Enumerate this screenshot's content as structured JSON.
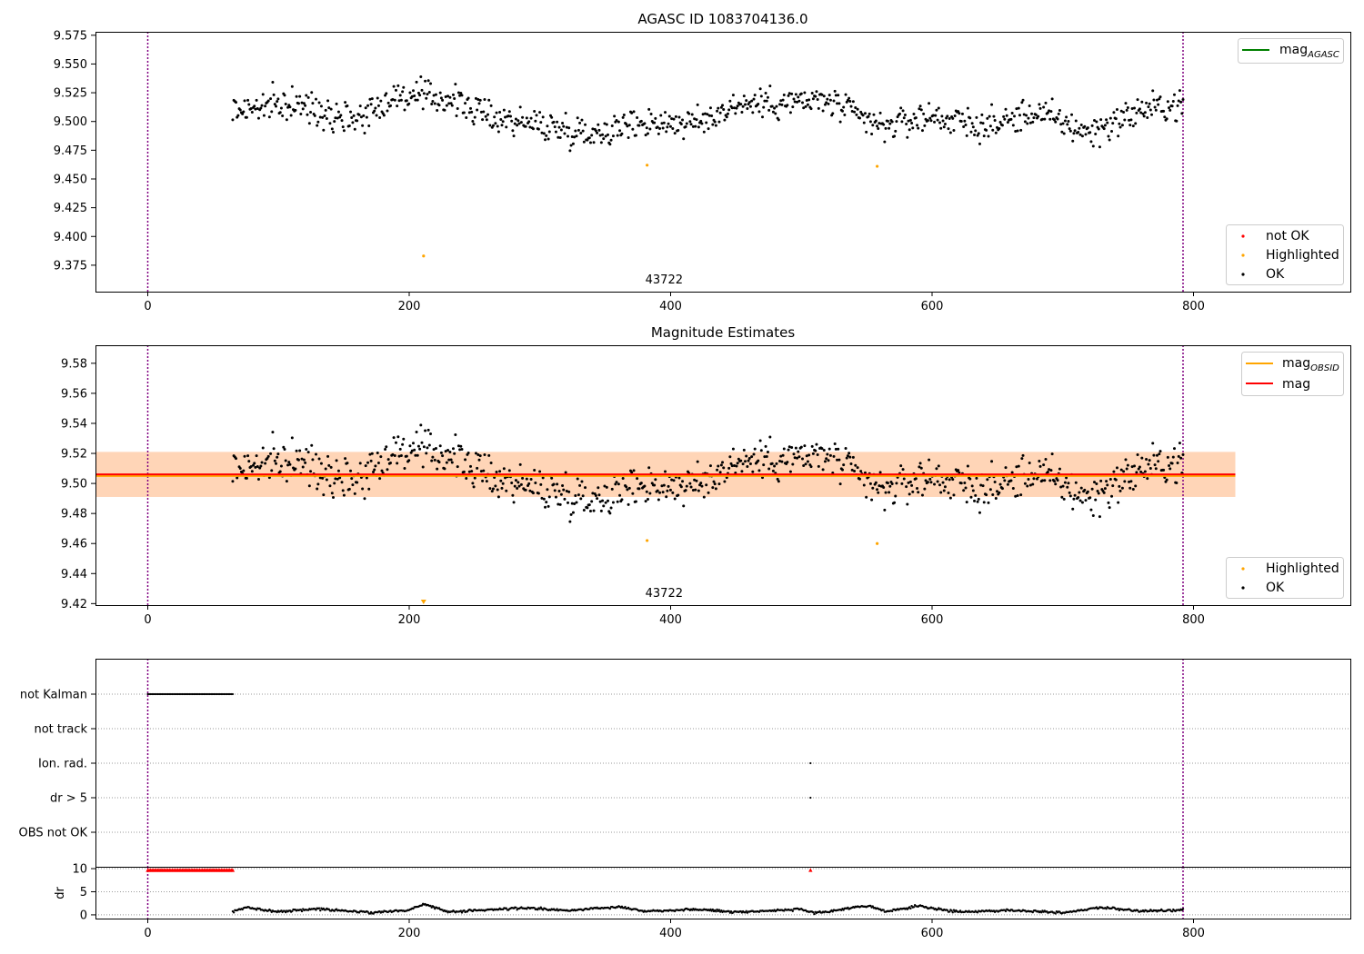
{
  "chart_data": [
    {
      "type": "scatter",
      "title": "AGASC ID 1083704136.0",
      "xlabel": "",
      "ylabel": "",
      "xlim": [
        -40,
        920
      ],
      "ylim": [
        9.352,
        9.578
      ],
      "xticks": [
        "0",
        "200",
        "400",
        "600",
        "800"
      ],
      "yticks": [
        "9.375",
        "9.400",
        "9.425",
        "9.450",
        "9.475",
        "9.500",
        "9.525",
        "9.550",
        "9.575"
      ],
      "obsid_label": "43722",
      "obsid_label_x": 395,
      "obs_boundaries": [
        0,
        792
      ],
      "legend_lines": [
        {
          "name": "mag$_{AGASC}$",
          "main": "mag",
          "sub": "AGASC",
          "color": "#008000"
        }
      ],
      "legend_points": [
        {
          "name": "not OK",
          "color": "#ff0000"
        },
        {
          "name": "Highlighted",
          "color": "#ffa500"
        },
        {
          "name": "OK",
          "color": "#000000"
        }
      ],
      "highlighted": [
        {
          "x": 211,
          "y": 9.383
        },
        {
          "x": 382,
          "y": 9.462
        },
        {
          "x": 558,
          "y": 9.461
        }
      ],
      "ok_series": {
        "x_start": 65,
        "x_end": 792,
        "count": 880,
        "color": "#000000",
        "trend": [
          [
            65,
            9.51
          ],
          [
            110,
            9.515
          ],
          [
            160,
            9.503
          ],
          [
            190,
            9.522
          ],
          [
            230,
            9.52
          ],
          [
            260,
            9.505
          ],
          [
            300,
            9.497
          ],
          [
            340,
            9.49
          ],
          [
            380,
            9.5
          ],
          [
            420,
            9.498
          ],
          [
            450,
            9.515
          ],
          [
            520,
            9.518
          ],
          [
            560,
            9.495
          ],
          [
            600,
            9.505
          ],
          [
            640,
            9.495
          ],
          [
            680,
            9.508
          ],
          [
            720,
            9.49
          ],
          [
            760,
            9.51
          ],
          [
            792,
            9.515
          ]
        ],
        "scatter": 0.012
      }
    },
    {
      "type": "scatter",
      "title": "Magnitude Estimates",
      "xlabel": "",
      "ylabel": "",
      "xlim": [
        -40,
        920
      ],
      "ylim": [
        9.419,
        9.592
      ],
      "xticks": [
        "0",
        "200",
        "400",
        "600",
        "800"
      ],
      "yticks": [
        "9.42",
        "9.44",
        "9.46",
        "9.48",
        "9.50",
        "9.52",
        "9.54",
        "9.56",
        "9.58"
      ],
      "obsid_label": "43722",
      "obsid_label_x": 395,
      "obs_boundaries": [
        0,
        792
      ],
      "mag_line": {
        "value": 9.506,
        "band": [
          9.491,
          9.521
        ],
        "xrange": [
          -40,
          832
        ],
        "color": "#ff0000"
      },
      "mag_obsid_line": {
        "value": 9.505,
        "band": [
          9.491,
          9.521
        ],
        "xrange": [
          -40,
          832
        ],
        "color": "#ffa500"
      },
      "legend_lines": [
        {
          "name": "mag$_{OBSID}$",
          "main": "mag",
          "sub": "OBSID",
          "color": "#ffa500"
        },
        {
          "name": "mag",
          "main": "mag",
          "sub": "",
          "color": "#ff0000"
        }
      ],
      "legend_points": [
        {
          "name": "Highlighted",
          "color": "#ffa500"
        },
        {
          "name": "OK",
          "color": "#000000"
        }
      ],
      "highlighted": [
        {
          "x": 382,
          "y": 9.462
        },
        {
          "x": 558,
          "y": 9.46
        }
      ],
      "clipped_marker": {
        "x": 211,
        "color": "#ffa500"
      }
    },
    {
      "type": "scatter",
      "title": "",
      "categories": [
        "not Kalman",
        "not track",
        "Ion. rad.",
        "dr > 5",
        "OBS not OK"
      ],
      "flags": {
        "not_kalman": {
          "x_range": [
            0,
            65
          ],
          "count": 60
        },
        "ion_rad": [
          507
        ],
        "dr_gt_5": [
          507
        ]
      },
      "obs_boundaries": [
        0,
        792
      ],
      "xlim": [
        -40,
        920
      ]
    },
    {
      "type": "scatter",
      "title": "",
      "ylabel": "dr",
      "yticks": [
        "0",
        "5",
        "10"
      ],
      "ylim": [
        -0.8,
        10.4
      ],
      "xticks": [
        "0",
        "200",
        "400",
        "600",
        "800"
      ],
      "xlim": [
        -40,
        920
      ],
      "clipped_red": {
        "x_range": [
          0,
          65
        ],
        "count": 60,
        "y": 9.7,
        "extra_x": 507,
        "color": "#ff0000"
      },
      "dr_trend": [
        [
          65,
          0.6
        ],
        [
          75,
          1.6
        ],
        [
          100,
          0.7
        ],
        [
          130,
          1.3
        ],
        [
          170,
          0.5
        ],
        [
          200,
          1.0
        ],
        [
          211,
          2.4
        ],
        [
          230,
          0.6
        ],
        [
          260,
          1.1
        ],
        [
          290,
          1.5
        ],
        [
          320,
          0.9
        ],
        [
          360,
          1.8
        ],
        [
          380,
          0.8
        ],
        [
          420,
          1.2
        ],
        [
          450,
          0.6
        ],
        [
          500,
          1.2
        ],
        [
          510,
          0.3
        ],
        [
          550,
          2.0
        ],
        [
          565,
          0.7
        ],
        [
          590,
          1.9
        ],
        [
          620,
          0.6
        ],
        [
          660,
          1.0
        ],
        [
          700,
          0.5
        ],
        [
          730,
          1.6
        ],
        [
          760,
          0.8
        ],
        [
          792,
          1.0
        ]
      ],
      "obs_boundaries": [
        0,
        792
      ]
    }
  ]
}
